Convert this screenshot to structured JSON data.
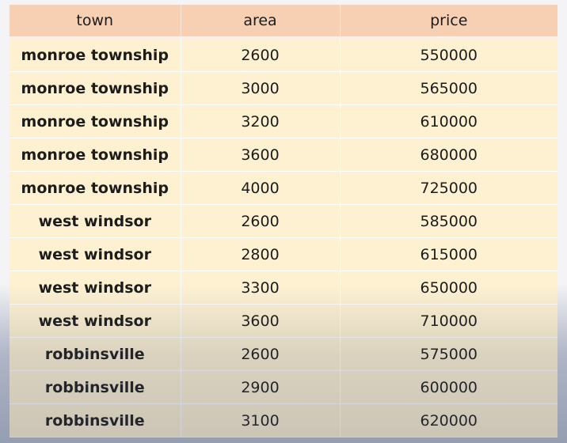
{
  "table": {
    "headers": [
      "town",
      "area",
      "price"
    ],
    "rows": [
      [
        "monroe township",
        "2600",
        "550000"
      ],
      [
        "monroe township",
        "3000",
        "565000"
      ],
      [
        "monroe township",
        "3200",
        "610000"
      ],
      [
        "monroe township",
        "3600",
        "680000"
      ],
      [
        "monroe township",
        "4000",
        "725000"
      ],
      [
        "west windsor",
        "2600",
        "585000"
      ],
      [
        "west windsor",
        "2800",
        "615000"
      ],
      [
        "west windsor",
        "3300",
        "650000"
      ],
      [
        "west windsor",
        "3600",
        "710000"
      ],
      [
        "robbinsville",
        "2600",
        "575000"
      ],
      [
        "robbinsville",
        "2900",
        "600000"
      ],
      [
        "robbinsville",
        "3100",
        "620000"
      ]
    ]
  },
  "colors": {
    "header_background": "#f7cfb3",
    "row_background": "#fdf1d2"
  }
}
